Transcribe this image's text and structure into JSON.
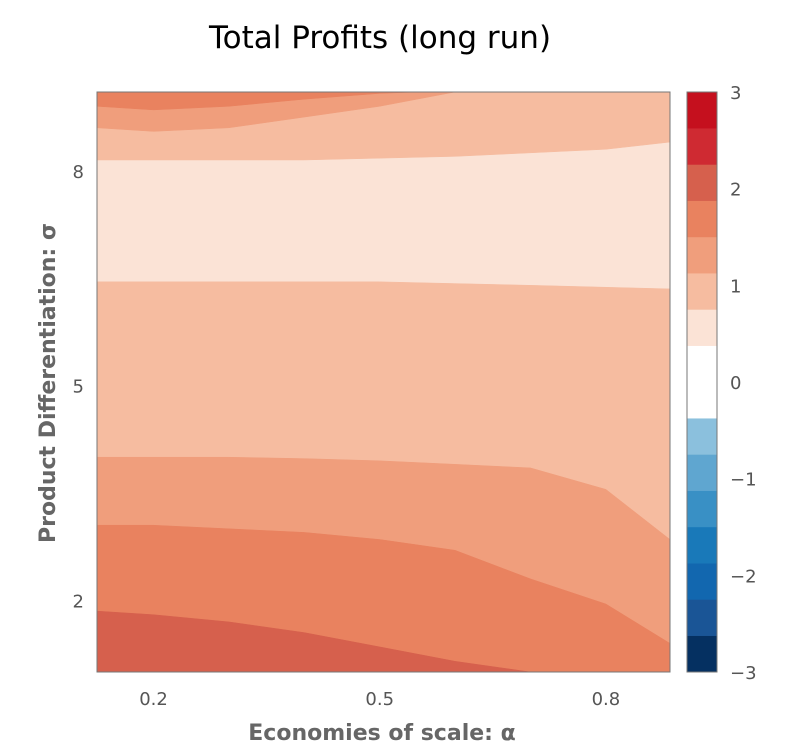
{
  "chart_data": {
    "type": "contour",
    "title": "Total Profits (long run)",
    "xlabel": "Economies of scale: α",
    "ylabel": "Product Differentiation: σ",
    "xlim": [
      0.125,
      0.885
    ],
    "ylim": [
      1,
      9.1
    ],
    "x_ticks": [
      "0.2",
      "0.5",
      "0.8"
    ],
    "x_tick_values": [
      0.2,
      0.5,
      0.8
    ],
    "y_ticks": [
      "2",
      "5",
      "8"
    ],
    "y_tick_values": [
      2,
      5,
      8
    ],
    "colorbar": {
      "range": [
        -3,
        3
      ],
      "step": 0.375,
      "ticks": [
        "3",
        "2",
        "1",
        "0",
        "−1",
        "−2",
        "−3"
      ],
      "tick_values": [
        3,
        2,
        1,
        0,
        -1,
        -2,
        -3
      ],
      "colors": [
        "#053061",
        "#1a5596",
        "#1267af",
        "#1979b9",
        "#3990c5",
        "#5fa6d0",
        "#8bc0dd",
        "#b0d5e7",
        "#d8e9f1",
        "#ffffff",
        "#fbe3d6",
        "#f6bca0",
        "#f09e7c",
        "#e9825f",
        "#d6604d",
        "#cf2a32",
        "#c5101e",
        "#a01126",
        "#67001f"
      ]
    },
    "levels": [
      0.375,
      0.75,
      1.125,
      1.5
    ],
    "level_colors": [
      "#fbe3d6",
      "#f6bca0",
      "#f09e7c",
      "#e9825f",
      "#d6604d"
    ],
    "boundaries": [
      {
        "level": 1.5,
        "points": [
          [
            0.125,
            1.85
          ],
          [
            0.2,
            1.8
          ],
          [
            0.3,
            1.7
          ],
          [
            0.4,
            1.55
          ],
          [
            0.5,
            1.35
          ],
          [
            0.6,
            1.15
          ],
          [
            0.7,
            1.0
          ]
        ]
      },
      {
        "level": 1.125,
        "points": [
          [
            0.125,
            3.05
          ],
          [
            0.2,
            3.05
          ],
          [
            0.3,
            3.0
          ],
          [
            0.4,
            2.95
          ],
          [
            0.5,
            2.85
          ],
          [
            0.6,
            2.7
          ],
          [
            0.7,
            2.3
          ],
          [
            0.8,
            1.95
          ],
          [
            0.885,
            1.4
          ]
        ]
      },
      {
        "level": 0.75,
        "points": [
          [
            0.125,
            4.0
          ],
          [
            0.2,
            4.0
          ],
          [
            0.3,
            4.0
          ],
          [
            0.4,
            3.98
          ],
          [
            0.5,
            3.95
          ],
          [
            0.6,
            3.9
          ],
          [
            0.7,
            3.85
          ],
          [
            0.8,
            3.55
          ],
          [
            0.885,
            2.85
          ]
        ]
      },
      {
        "level": 0.375,
        "points": [
          [
            0.125,
            6.45
          ],
          [
            0.3,
            6.45
          ],
          [
            0.5,
            6.45
          ],
          [
            0.7,
            6.4
          ],
          [
            0.885,
            6.35
          ]
        ]
      },
      {
        "level": 0.375,
        "points": [
          [
            0.125,
            8.15
          ],
          [
            0.2,
            8.15
          ],
          [
            0.4,
            8.15
          ],
          [
            0.6,
            8.2
          ],
          [
            0.8,
            8.3
          ],
          [
            0.885,
            8.4
          ]
        ]
      },
      {
        "level": 0.75,
        "points": [
          [
            0.125,
            8.6
          ],
          [
            0.2,
            8.55
          ],
          [
            0.3,
            8.6
          ],
          [
            0.4,
            8.75
          ],
          [
            0.5,
            8.9
          ],
          [
            0.6,
            9.1
          ]
        ]
      },
      {
        "level": 1.125,
        "points": [
          [
            0.125,
            8.9
          ],
          [
            0.2,
            8.85
          ],
          [
            0.3,
            8.9
          ],
          [
            0.4,
            9.0
          ],
          [
            0.5,
            9.08
          ],
          [
            0.55,
            9.1
          ]
        ]
      }
    ]
  }
}
